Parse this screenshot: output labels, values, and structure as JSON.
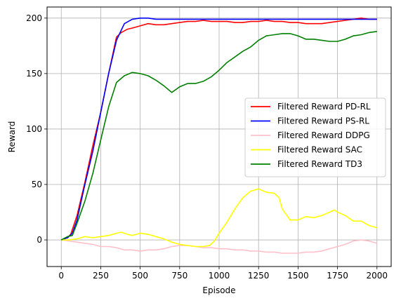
{
  "chart_data": {
    "type": "line",
    "title": "",
    "xlabel": "Episode",
    "ylabel": "Reward",
    "xlim": [
      -90,
      2090
    ],
    "ylim": [
      -24,
      210
    ],
    "xticks": [
      0,
      250,
      500,
      750,
      1000,
      1250,
      1500,
      1750,
      2000
    ],
    "yticks": [
      0,
      50,
      100,
      150,
      200
    ],
    "grid": true,
    "legend_position": "center-right",
    "series": [
      {
        "name": "Filtered Reward PD-RL",
        "color": "#ff0000",
        "points": [
          [
            0,
            0
          ],
          [
            40,
            2
          ],
          [
            60,
            5
          ],
          [
            100,
            22
          ],
          [
            150,
            52
          ],
          [
            200,
            85
          ],
          [
            250,
            115
          ],
          [
            300,
            150
          ],
          [
            350,
            183
          ],
          [
            380,
            187
          ],
          [
            420,
            190
          ],
          [
            450,
            191
          ],
          [
            500,
            193
          ],
          [
            550,
            195
          ],
          [
            600,
            194
          ],
          [
            650,
            194
          ],
          [
            700,
            195
          ],
          [
            750,
            196
          ],
          [
            800,
            197
          ],
          [
            850,
            197
          ],
          [
            900,
            198
          ],
          [
            950,
            197
          ],
          [
            1000,
            197
          ],
          [
            1050,
            197
          ],
          [
            1100,
            196
          ],
          [
            1150,
            196
          ],
          [
            1200,
            197
          ],
          [
            1250,
            197
          ],
          [
            1300,
            198
          ],
          [
            1350,
            197
          ],
          [
            1400,
            197
          ],
          [
            1450,
            196
          ],
          [
            1500,
            196
          ],
          [
            1550,
            195
          ],
          [
            1600,
            195
          ],
          [
            1650,
            195
          ],
          [
            1700,
            196
          ],
          [
            1750,
            197
          ],
          [
            1800,
            198
          ],
          [
            1850,
            199
          ],
          [
            1900,
            200
          ],
          [
            1950,
            199
          ],
          [
            2000,
            199
          ]
        ]
      },
      {
        "name": "Filtered Reward PS-RL",
        "color": "#0000ff",
        "points": [
          [
            0,
            0
          ],
          [
            40,
            2
          ],
          [
            70,
            6
          ],
          [
            100,
            18
          ],
          [
            150,
            50
          ],
          [
            200,
            80
          ],
          [
            250,
            115
          ],
          [
            300,
            150
          ],
          [
            350,
            180
          ],
          [
            400,
            195
          ],
          [
            450,
            199
          ],
          [
            500,
            200
          ],
          [
            550,
            200
          ],
          [
            600,
            199
          ],
          [
            700,
            199
          ],
          [
            800,
            199
          ],
          [
            900,
            199
          ],
          [
            1000,
            199
          ],
          [
            1100,
            199
          ],
          [
            1200,
            199
          ],
          [
            1300,
            199
          ],
          [
            1400,
            199
          ],
          [
            1500,
            199
          ],
          [
            1600,
            199
          ],
          [
            1700,
            199
          ],
          [
            1800,
            199
          ],
          [
            1900,
            199
          ],
          [
            2000,
            199
          ]
        ]
      },
      {
        "name": "Filtered Reward DDPG",
        "color": "#ffc0cb",
        "points": [
          [
            0,
            0
          ],
          [
            50,
            -1
          ],
          [
            100,
            -2
          ],
          [
            150,
            -3
          ],
          [
            200,
            -4
          ],
          [
            250,
            -6
          ],
          [
            300,
            -6
          ],
          [
            350,
            -7
          ],
          [
            400,
            -9
          ],
          [
            450,
            -9
          ],
          [
            500,
            -10
          ],
          [
            550,
            -9
          ],
          [
            600,
            -9
          ],
          [
            650,
            -8
          ],
          [
            700,
            -6
          ],
          [
            750,
            -5
          ],
          [
            800,
            -5
          ],
          [
            850,
            -6
          ],
          [
            900,
            -7
          ],
          [
            950,
            -7
          ],
          [
            1000,
            -8
          ],
          [
            1050,
            -8
          ],
          [
            1100,
            -9
          ],
          [
            1150,
            -9
          ],
          [
            1200,
            -10
          ],
          [
            1250,
            -10
          ],
          [
            1300,
            -11
          ],
          [
            1350,
            -11
          ],
          [
            1400,
            -12
          ],
          [
            1450,
            -12
          ],
          [
            1500,
            -12
          ],
          [
            1550,
            -11
          ],
          [
            1600,
            -11
          ],
          [
            1650,
            -10
          ],
          [
            1700,
            -8
          ],
          [
            1750,
            -6
          ],
          [
            1800,
            -4
          ],
          [
            1850,
            -1
          ],
          [
            1900,
            0
          ],
          [
            1950,
            -1
          ],
          [
            2000,
            -3
          ]
        ]
      },
      {
        "name": "Filtered Reward SAC",
        "color": "#ffff00",
        "points": [
          [
            0,
            0
          ],
          [
            50,
            0
          ],
          [
            100,
            1
          ],
          [
            150,
            3
          ],
          [
            200,
            2
          ],
          [
            250,
            3
          ],
          [
            300,
            4
          ],
          [
            350,
            6
          ],
          [
            380,
            7
          ],
          [
            420,
            5
          ],
          [
            450,
            4
          ],
          [
            500,
            6
          ],
          [
            550,
            5
          ],
          [
            600,
            3
          ],
          [
            650,
            1
          ],
          [
            700,
            -2
          ],
          [
            750,
            -4
          ],
          [
            800,
            -5
          ],
          [
            850,
            -6
          ],
          [
            900,
            -6
          ],
          [
            940,
            -5
          ],
          [
            970,
            -1
          ],
          [
            1000,
            6
          ],
          [
            1050,
            16
          ],
          [
            1100,
            28
          ],
          [
            1150,
            38
          ],
          [
            1200,
            44
          ],
          [
            1250,
            46
          ],
          [
            1300,
            43
          ],
          [
            1350,
            42
          ],
          [
            1380,
            38
          ],
          [
            1400,
            28
          ],
          [
            1450,
            18
          ],
          [
            1500,
            18
          ],
          [
            1550,
            21
          ],
          [
            1600,
            20
          ],
          [
            1650,
            22
          ],
          [
            1700,
            25
          ],
          [
            1730,
            27
          ],
          [
            1750,
            25
          ],
          [
            1800,
            22
          ],
          [
            1850,
            17
          ],
          [
            1900,
            17
          ],
          [
            1950,
            13
          ],
          [
            2000,
            11
          ]
        ]
      },
      {
        "name": "Filtered Reward TD3",
        "color": "#008000",
        "points": [
          [
            0,
            0
          ],
          [
            40,
            3
          ],
          [
            70,
            4
          ],
          [
            100,
            15
          ],
          [
            150,
            35
          ],
          [
            200,
            60
          ],
          [
            250,
            90
          ],
          [
            300,
            120
          ],
          [
            350,
            142
          ],
          [
            400,
            148
          ],
          [
            450,
            151
          ],
          [
            500,
            150
          ],
          [
            550,
            148
          ],
          [
            600,
            144
          ],
          [
            650,
            139
          ],
          [
            700,
            133
          ],
          [
            750,
            138
          ],
          [
            800,
            141
          ],
          [
            850,
            141
          ],
          [
            900,
            143
          ],
          [
            950,
            147
          ],
          [
            1000,
            153
          ],
          [
            1050,
            160
          ],
          [
            1100,
            165
          ],
          [
            1150,
            170
          ],
          [
            1200,
            174
          ],
          [
            1250,
            180
          ],
          [
            1300,
            184
          ],
          [
            1350,
            185
          ],
          [
            1400,
            186
          ],
          [
            1450,
            186
          ],
          [
            1500,
            184
          ],
          [
            1550,
            181
          ],
          [
            1600,
            181
          ],
          [
            1650,
            180
          ],
          [
            1700,
            179
          ],
          [
            1750,
            179
          ],
          [
            1800,
            181
          ],
          [
            1850,
            184
          ],
          [
            1900,
            185
          ],
          [
            1950,
            187
          ],
          [
            2000,
            188
          ]
        ]
      }
    ]
  }
}
